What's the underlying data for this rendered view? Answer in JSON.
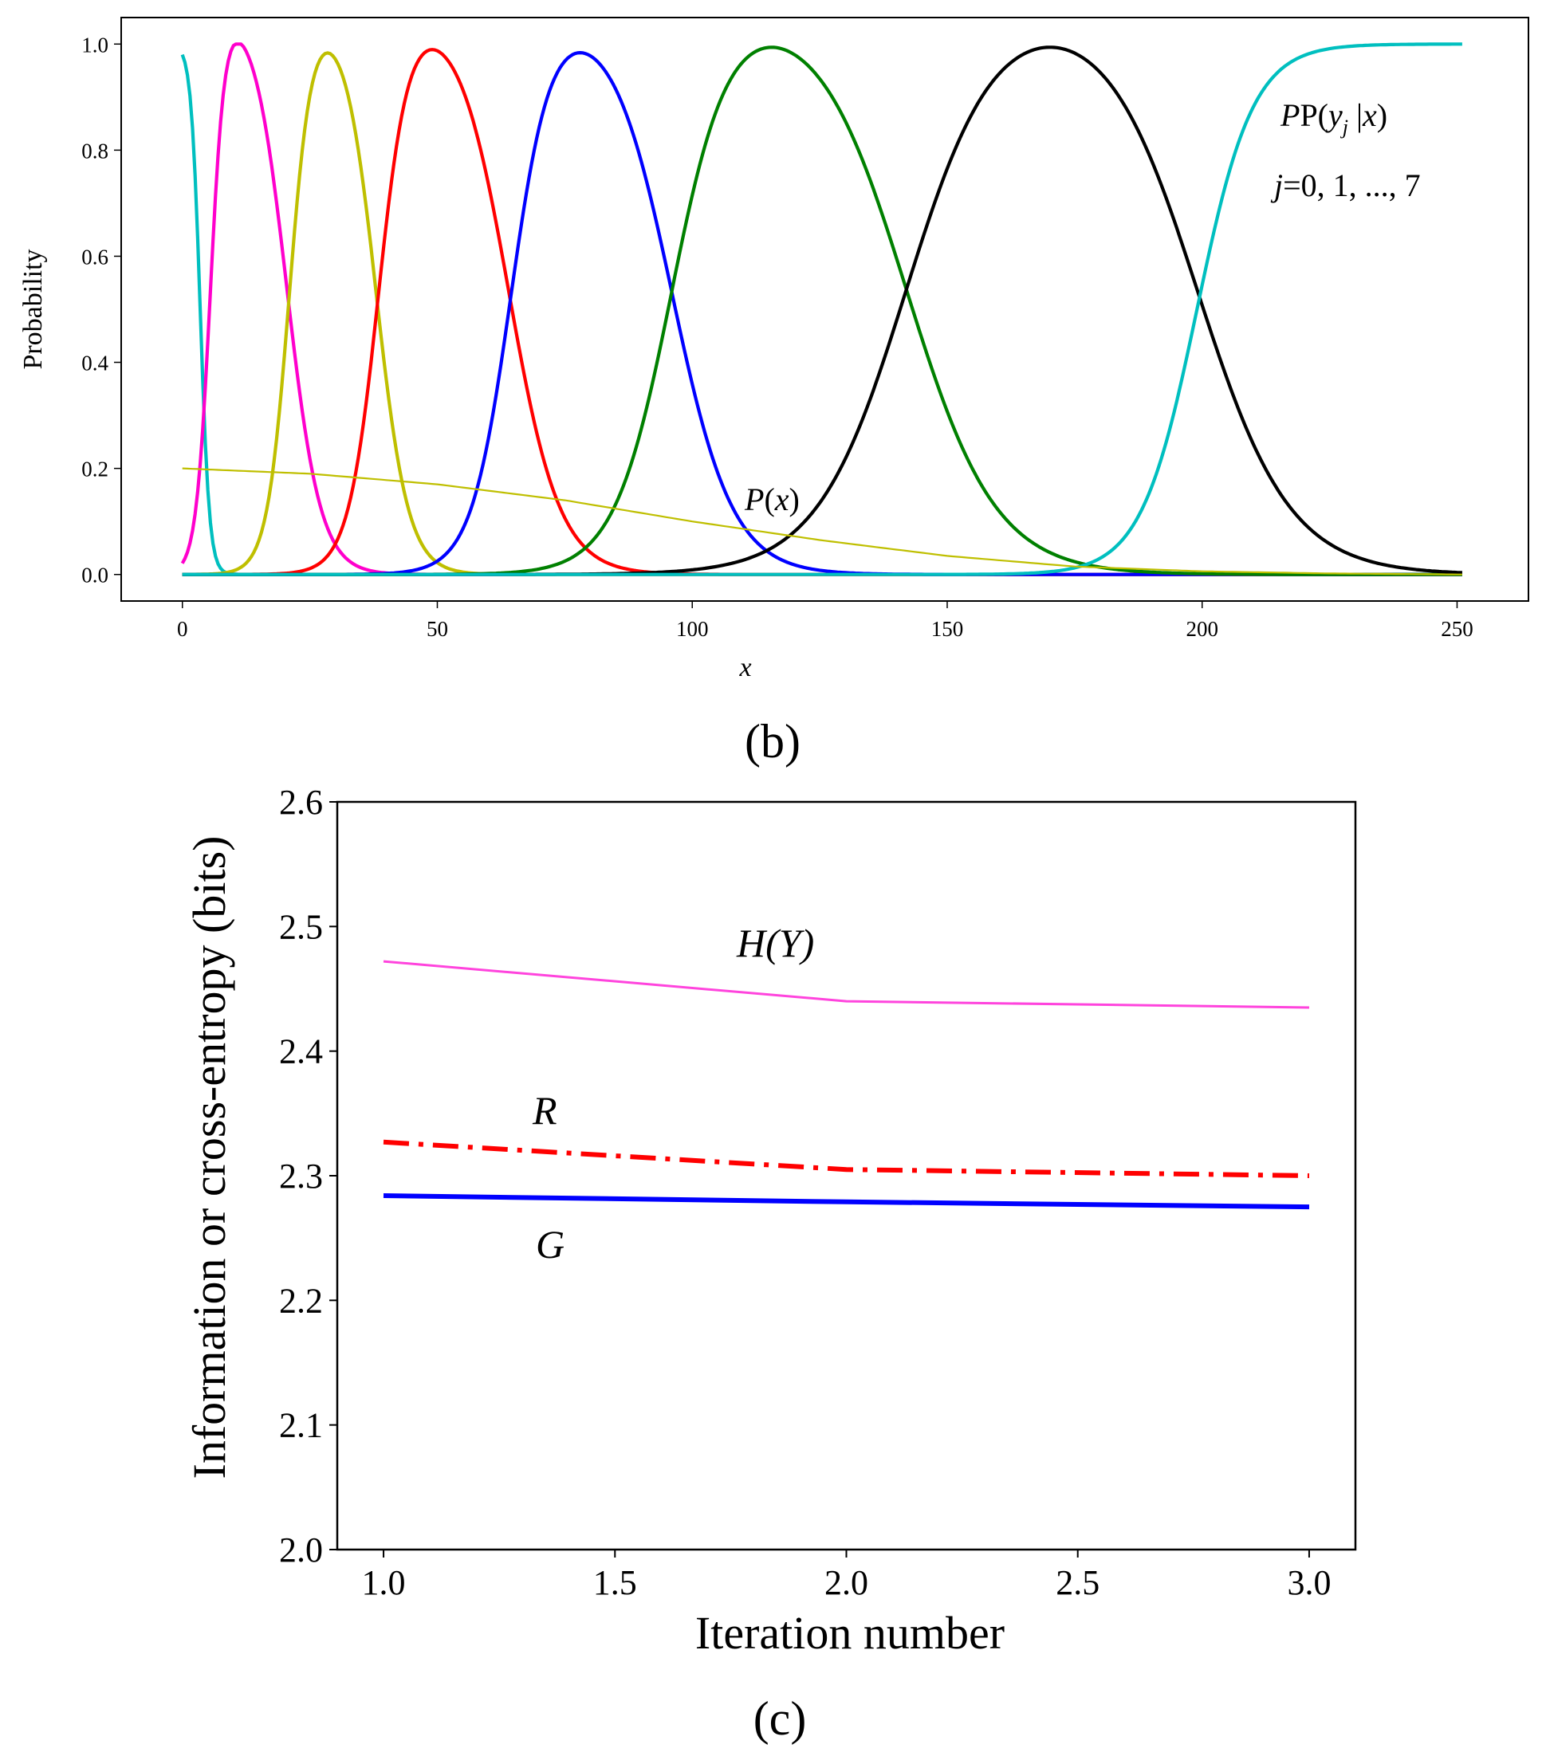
{
  "chart_data": [
    {
      "type": "line",
      "panel_label": "(b)",
      "xlabel": "x",
      "ylabel": "Probability",
      "xlim": [
        -12,
        264
      ],
      "ylim": [
        -0.05,
        1.05
      ],
      "x_ticks": [
        "0",
        "50",
        "100",
        "150",
        "200",
        "250"
      ],
      "y_ticks": [
        "0.0",
        "0.2",
        "0.4",
        "0.6",
        "0.8",
        "1.0"
      ],
      "annotations": {
        "curves_label": "P(y|x)",
        "curves_label_main": "P(",
        "curves_label_y": "y",
        "curves_label_sub": "j",
        "curves_label_rest": "|",
        "curves_label_x": "x",
        "curves_label_close": ")",
        "index_label_j": "j",
        "index_label_rest": "=0, 1, ..., 7",
        "px_label_p": "P",
        "px_label_open": "(",
        "px_label_x": "x",
        "px_label_close": ")"
      },
      "series": [
        {
          "color": "#00bfbf",
          "peak_x": 0,
          "peak_y": 1.0,
          "shape": "decreasing",
          "x50_right": 3.5
        },
        {
          "color": "#ff00cc",
          "peak_x": 10,
          "peak_y": 1.0,
          "x50_left": 5.5,
          "x50_right": 20.5
        },
        {
          "color": "#bfbf00",
          "peak_x": 28,
          "peak_y": 0.985,
          "x50_left": 21,
          "x50_right": 38
        },
        {
          "color": "#ff0000",
          "peak_x": 48,
          "peak_y": 0.99,
          "x50_left": 38.5,
          "x50_right": 64
        },
        {
          "color": "#0000ff",
          "peak_x": 77,
          "peak_y": 0.985,
          "x50_left": 64.5,
          "x50_right": 96
        },
        {
          "color": "#008000",
          "peak_x": 114,
          "peak_y": 0.995,
          "x50_left": 96,
          "x50_right": 142
        },
        {
          "color": "#000000",
          "peak_x": 170,
          "peak_y": 0.997,
          "x50_left": 142,
          "x50_right": 199
        },
        {
          "color": "#00bfbf",
          "peak_x": 251,
          "peak_y": 1.0,
          "shape": "increasing",
          "x50_left": 199
        },
        {
          "name": "P(x)",
          "color": "#bfbf00",
          "points": [
            [
              0,
              0.2
            ],
            [
              25,
              0.19
            ],
            [
              50,
              0.17
            ],
            [
              75,
              0.14
            ],
            [
              100,
              0.1
            ],
            [
              125,
              0.065
            ],
            [
              150,
              0.035
            ],
            [
              175,
              0.015
            ],
            [
              200,
              0.006
            ],
            [
              225,
              0.002
            ],
            [
              251,
              0.0
            ]
          ]
        }
      ]
    },
    {
      "type": "line",
      "panel_label": "(c)",
      "xlabel": "Iteration number",
      "ylabel": "Information or cross-entropy (bits)",
      "xlim": [
        0.9,
        3.1
      ],
      "ylim": [
        2.0,
        2.6
      ],
      "x_ticks": [
        "1.0",
        "1.5",
        "2.0",
        "2.5",
        "3.0"
      ],
      "y_ticks": [
        "2.0",
        "2.1",
        "2.2",
        "2.3",
        "2.4",
        "2.5",
        "2.6"
      ],
      "series": [
        {
          "name": "H(Y)",
          "color": "#ff44dd",
          "style": "solid",
          "x": [
            1.0,
            2.0,
            3.0
          ],
          "y": [
            2.472,
            2.44,
            2.435
          ]
        },
        {
          "name": "R",
          "color": "#ff0000",
          "style": "dashdot",
          "x": [
            1.0,
            2.0,
            3.0
          ],
          "y": [
            2.327,
            2.305,
            2.3
          ]
        },
        {
          "name": "G",
          "color": "#0000ff",
          "style": "solid",
          "x": [
            1.0,
            2.0,
            3.0
          ],
          "y": [
            2.284,
            2.279,
            2.275
          ]
        }
      ]
    }
  ]
}
